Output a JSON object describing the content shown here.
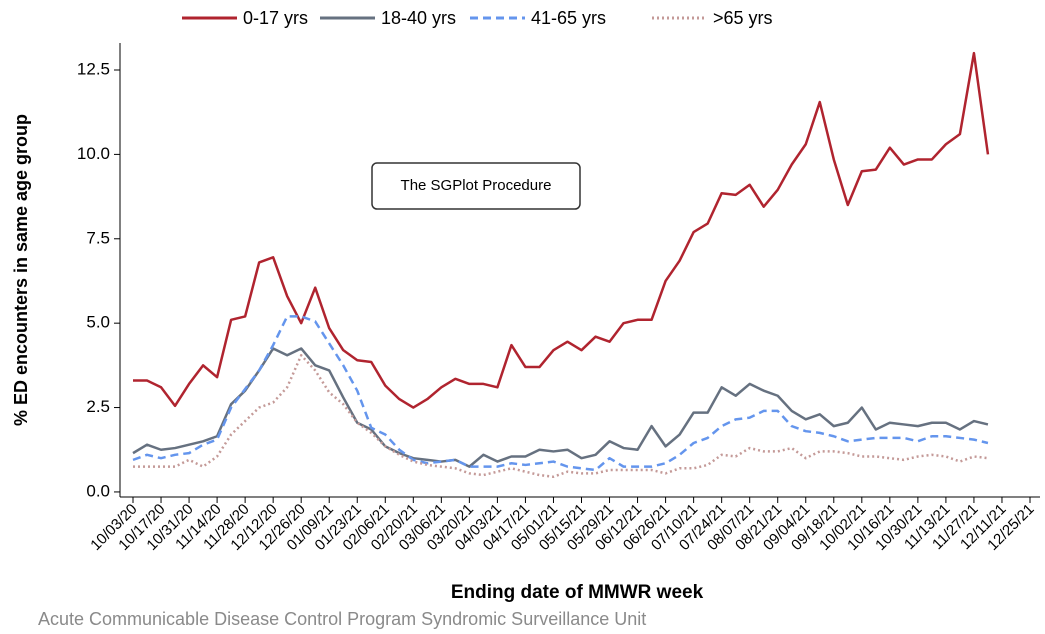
{
  "chart_data": {
    "type": "line",
    "annotation": "The SGPlot Procedure",
    "xlabel": "Ending date of MMWR week",
    "ylabel": "% ED encounters in same age group",
    "footer": "Acute Communicable Disease Control Program Syndromic Surveillance Unit",
    "categories": [
      "10/03/20",
      null,
      "10/17/20",
      null,
      "10/31/20",
      null,
      "11/14/20",
      null,
      "11/28/20",
      null,
      "12/12/20",
      null,
      "12/26/20",
      null,
      "01/09/21",
      null,
      "01/23/21",
      null,
      "02/06/21",
      null,
      "02/20/21",
      null,
      "03/06/21",
      null,
      "03/20/21",
      null,
      "04/03/21",
      null,
      "04/17/21",
      null,
      "05/01/21",
      null,
      "05/15/21",
      null,
      "05/29/21",
      null,
      "06/12/21",
      null,
      "06/26/21",
      null,
      "07/10/21",
      null,
      "07/24/21",
      null,
      "08/07/21",
      null,
      "08/21/21",
      null,
      "09/04/21",
      null,
      "09/18/21",
      null,
      "10/02/21",
      null,
      "10/16/21",
      null,
      "10/30/21",
      null,
      "11/13/21",
      null,
      "11/27/21",
      null,
      "12/11/21",
      null,
      "12/25/21"
    ],
    "ylim": [
      -0.15,
      13.3
    ],
    "yticks": [
      {
        "value": 0,
        "label": "0.0"
      },
      2.5,
      {
        "value": 5,
        "label": "5.0"
      },
      7.5,
      {
        "value": 10,
        "label": "10.0"
      },
      12.5
    ],
    "series": [
      {
        "name": "0-17 yrs",
        "color": "#b0242f",
        "style": "solid",
        "values": [
          3.3,
          3.3,
          3.1,
          2.55,
          3.2,
          3.75,
          3.4,
          5.1,
          5.2,
          6.8,
          6.95,
          5.8,
          5.0,
          6.05,
          4.85,
          4.2,
          3.9,
          3.85,
          3.15,
          2.75,
          2.5,
          2.75,
          3.1,
          3.35,
          3.2,
          3.2,
          3.1,
          4.35,
          3.7,
          3.7,
          4.2,
          4.45,
          4.2,
          4.6,
          4.45,
          5.0,
          5.1,
          5.1,
          6.25,
          6.85,
          7.7,
          7.95,
          8.85,
          8.8,
          9.1,
          8.45,
          8.95,
          9.7,
          10.3,
          11.55,
          9.85,
          8.5,
          9.5,
          9.55,
          10.2,
          9.7,
          9.85,
          9.85,
          10.3,
          10.6,
          13.0,
          10.0,
          null,
          null,
          null
        ]
      },
      {
        "name": "18-40 yrs",
        "color": "#667180",
        "style": "solid",
        "values": [
          1.15,
          1.4,
          1.25,
          1.3,
          1.4,
          1.5,
          1.65,
          2.6,
          3.0,
          3.6,
          4.25,
          4.05,
          4.25,
          3.75,
          3.6,
          2.8,
          2.05,
          1.85,
          1.35,
          1.15,
          1.0,
          0.95,
          0.9,
          0.95,
          0.75,
          1.1,
          0.9,
          1.05,
          1.05,
          1.25,
          1.2,
          1.25,
          1.0,
          1.1,
          1.5,
          1.3,
          1.25,
          1.95,
          1.35,
          1.7,
          2.35,
          2.35,
          3.1,
          2.85,
          3.2,
          3.0,
          2.85,
          2.4,
          2.15,
          2.3,
          1.95,
          2.05,
          2.5,
          1.85,
          2.05,
          2.0,
          1.95,
          2.05,
          2.05,
          1.85,
          2.1,
          2.0,
          null,
          null,
          null
        ]
      },
      {
        "name": "41-65 yrs",
        "color": "#6495ed",
        "style": "dashed",
        "values": [
          0.95,
          1.1,
          1.0,
          1.1,
          1.15,
          1.4,
          1.55,
          2.5,
          3.05,
          3.6,
          4.35,
          5.2,
          5.2,
          5.05,
          4.4,
          3.75,
          3.0,
          1.9,
          1.7,
          1.25,
          0.95,
          0.85,
          0.9,
          0.95,
          0.75,
          0.75,
          0.75,
          0.85,
          0.8,
          0.85,
          0.9,
          0.75,
          0.7,
          0.65,
          1.0,
          0.75,
          0.75,
          0.75,
          0.85,
          1.1,
          1.45,
          1.6,
          1.95,
          2.15,
          2.2,
          2.4,
          2.4,
          1.95,
          1.8,
          1.75,
          1.65,
          1.5,
          1.55,
          1.6,
          1.6,
          1.6,
          1.5,
          1.65,
          1.65,
          1.6,
          1.55,
          1.45,
          null,
          null,
          null
        ]
      },
      {
        "name": ">65 yrs",
        "color": "#c49a98",
        "style": "dotted",
        "values": [
          0.75,
          0.75,
          0.75,
          0.75,
          0.95,
          0.75,
          1.05,
          1.7,
          2.1,
          2.5,
          2.65,
          3.1,
          4.05,
          3.6,
          2.95,
          2.6,
          2.05,
          1.75,
          1.35,
          1.1,
          0.9,
          0.8,
          0.75,
          0.7,
          0.55,
          0.5,
          0.6,
          0.7,
          0.6,
          0.5,
          0.45,
          0.6,
          0.55,
          0.55,
          0.65,
          0.65,
          0.65,
          0.65,
          0.55,
          0.7,
          0.7,
          0.8,
          1.1,
          1.05,
          1.3,
          1.2,
          1.2,
          1.3,
          1.0,
          1.2,
          1.2,
          1.15,
          1.05,
          1.05,
          1.0,
          0.95,
          1.05,
          1.1,
          1.05,
          0.9,
          1.05,
          1.0,
          null,
          null,
          null
        ]
      }
    ]
  }
}
